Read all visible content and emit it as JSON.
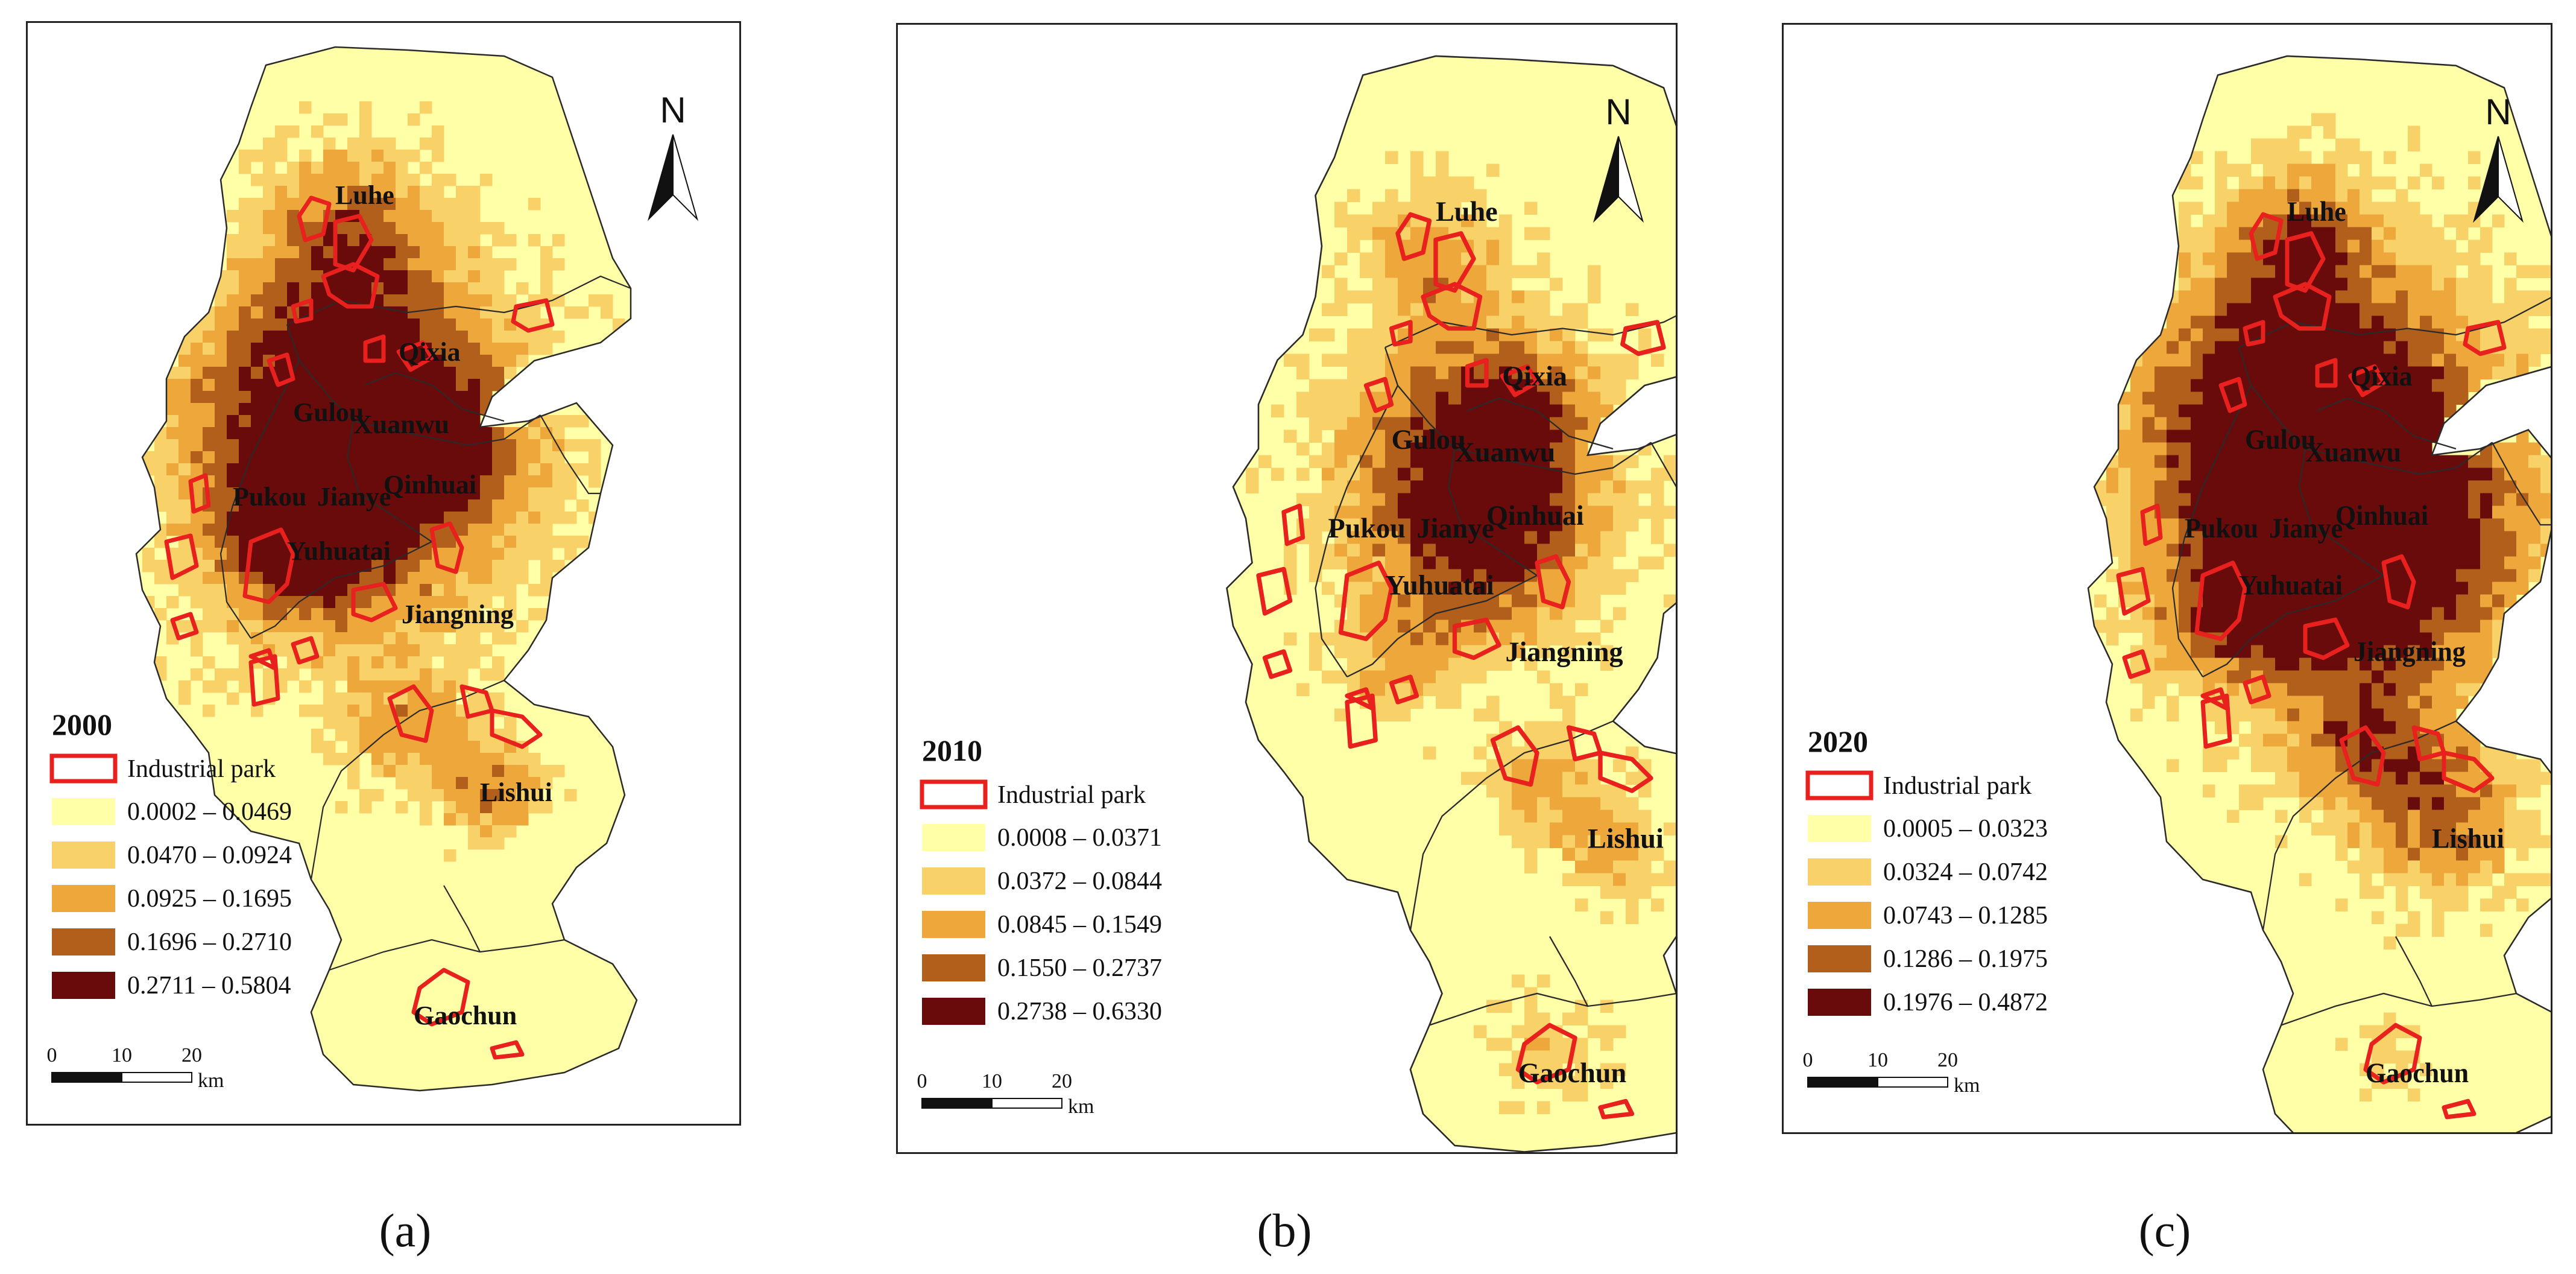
{
  "north_label": "N",
  "legend_park_label": "Industrial park",
  "scale": {
    "ticks": [
      "0",
      "10",
      "20"
    ],
    "unit": "km"
  },
  "colors": {
    "class1": "#FFFFA8",
    "class2": "#F8D168",
    "class3": "#EEA73A",
    "class4": "#B35F1C",
    "class5": "#690B0B",
    "park": "#E8201E",
    "boundary": "#2a2a2a"
  },
  "district_labels": [
    "Luhe",
    "Qixia",
    "Gulou",
    "Xuanwu",
    "Pukou",
    "Jianye",
    "Qinhuai",
    "Yuhuatai",
    "Jiangning",
    "Lishui",
    "Gaochun"
  ],
  "panels": [
    {
      "year": "2000",
      "caption": "(a)",
      "legend": [
        "0.0002 – 0.0469",
        "0.0470 – 0.0924",
        "0.0925 – 0.1695",
        "0.1696 – 0.2710",
        "0.2711 – 0.5804"
      ]
    },
    {
      "year": "2010",
      "caption": "(b)",
      "legend": [
        "0.0008 – 0.0371",
        "0.0372 – 0.0844",
        "0.0845 – 0.1549",
        "0.1550 – 0.2737",
        "0.2738 – 0.6330"
      ]
    },
    {
      "year": "2020",
      "caption": "(c)",
      "legend": [
        "0.0005 – 0.0323",
        "0.0324 – 0.0742",
        "0.0743 – 0.1285",
        "0.1286 – 0.1975",
        "0.1976 – 0.4872"
      ]
    }
  ]
}
